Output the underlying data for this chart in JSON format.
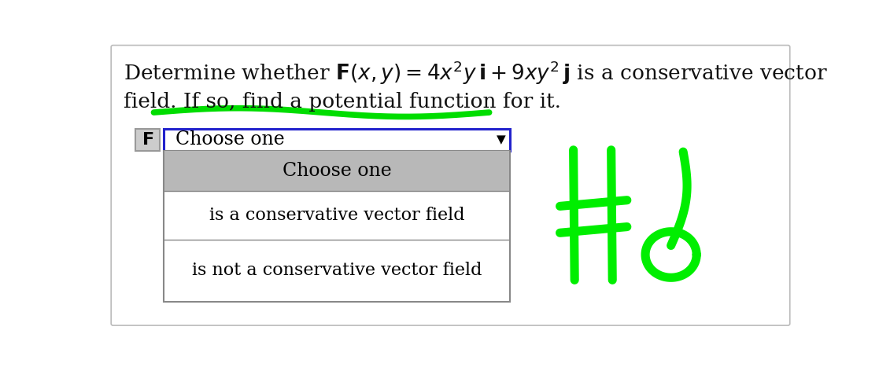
{
  "bg_color": "#ffffff",
  "dropdown_text": "Choose one",
  "dropdown_arrow": "▼",
  "option1_bg": "#b8b8b8",
  "option1_text": "Choose one",
  "option2_text": "is a conservative vector field",
  "option3_text": "is not a conservative vector field",
  "dropdown_border_color": "#2222cc",
  "dropdown_box_border": "#888888",
  "F_box_bg": "#cccccc",
  "F_box_border": "#999999",
  "underline_color": "#00dd00",
  "hash6_color": "#00ee00",
  "outer_border_color": "#bbbbbb",
  "text_color": "#111111"
}
